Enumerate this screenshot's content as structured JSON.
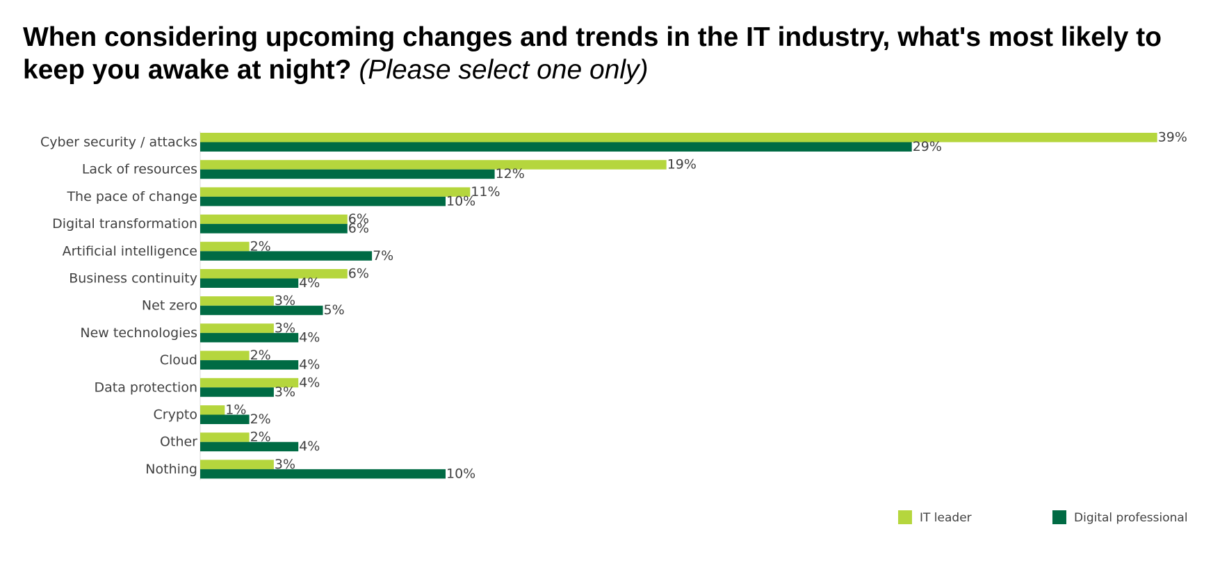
{
  "title": "When considering upcoming changes and trends in the IT industry, what's most likely to keep you awake at night?",
  "subtitle": "(Please select one only)",
  "colors": {
    "it_leader": "#b5d63d",
    "digital_professional": "#006b44",
    "label_text": "#404040"
  },
  "chart_data": {
    "type": "bar",
    "orientation": "horizontal",
    "categories": [
      "Cyber security / attacks",
      "Lack of resources",
      "The pace of change",
      "Digital transformation",
      "Artificial intelligence",
      "Business continuity",
      "Net zero",
      "New technologies",
      "Cloud",
      "Data protection",
      "Crypto",
      "Other",
      "Nothing"
    ],
    "series": [
      {
        "name": "IT leader",
        "color": "#b5d63d",
        "values": [
          39,
          19,
          11,
          6,
          2,
          6,
          3,
          3,
          2,
          4,
          1,
          2,
          3
        ],
        "labels": [
          "39%",
          "19%",
          "11%",
          "6%",
          "2%",
          "6%",
          "3%",
          "3%",
          "2%",
          "4%",
          "1%",
          "2%",
          "3%"
        ]
      },
      {
        "name": "Digital professional",
        "color": "#006b44",
        "values": [
          29,
          12,
          10,
          6,
          7,
          4,
          5,
          4,
          4,
          3,
          2,
          4,
          10
        ],
        "labels": [
          "29%",
          "12%",
          "10%",
          "6%",
          "7%",
          "4%",
          "5%",
          "4%",
          "4%",
          "3%",
          "2%",
          "4%",
          "10%"
        ]
      }
    ],
    "unit": "%",
    "xlim": [
      0,
      39
    ],
    "grid": false,
    "legend": "bottom-right"
  }
}
